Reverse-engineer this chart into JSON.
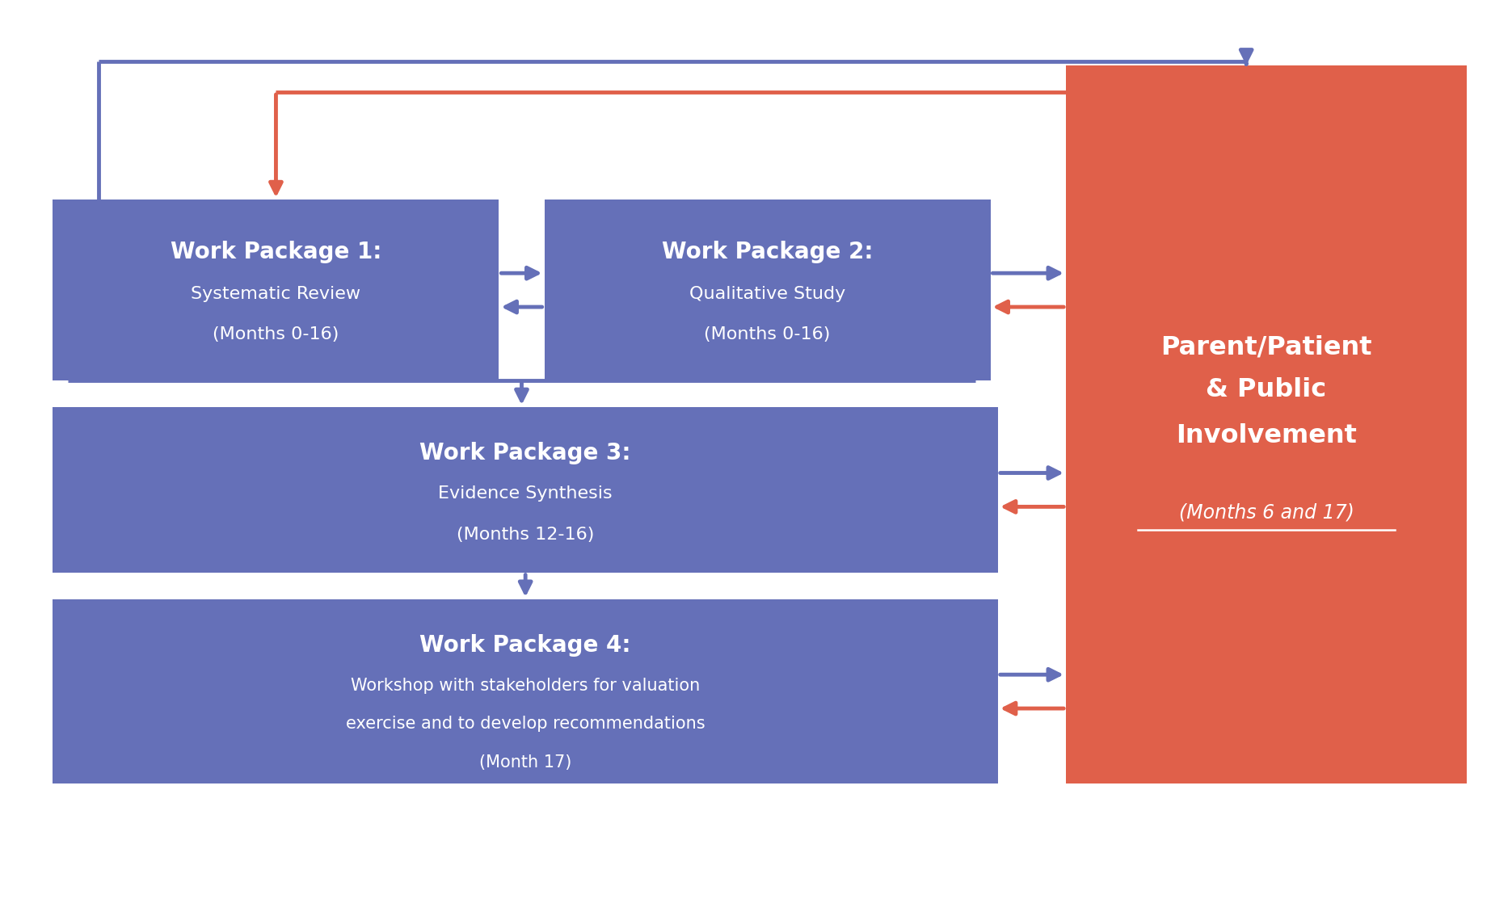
{
  "bg_color": "#ffffff",
  "box_blue": "#6570B8",
  "box_red": "#E0604A",
  "text_white": "#ffffff",
  "arrow_blue": "#6570B8",
  "arrow_red": "#E0604A",
  "wp1_title": "Work Package 1:",
  "wp1_line2": "Systematic Review",
  "wp1_line3": "(Months 0-16)",
  "wp2_title": "Work Package 2:",
  "wp2_line2": "Qualitative Study",
  "wp2_line3": "(Months 0-16)",
  "wp3_title": "Work Package 3:",
  "wp3_line2": "Evidence Synthesis",
  "wp3_line3": "(Months 12-16)",
  "wp4_title": "Work Package 4:",
  "wp4_line2": "Workshop with stakeholders for valuation",
  "wp4_line3": "exercise and to develop recommendations",
  "wp4_line4": "(Month 17)",
  "ppi_line1": "Parent/Patient",
  "ppi_line2": "& Public",
  "ppi_line3": "Involvement",
  "ppi_subtitle": "(Months 6 and 17)"
}
